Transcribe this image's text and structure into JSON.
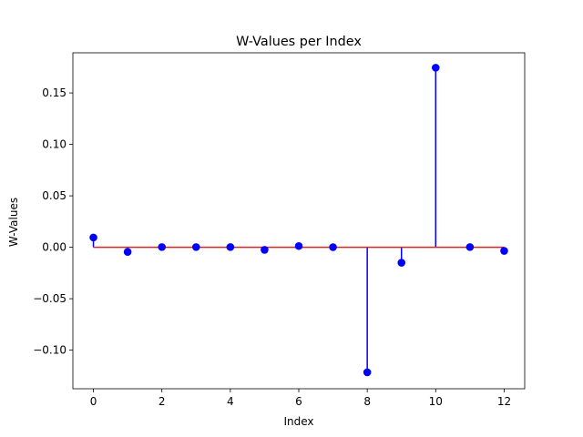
{
  "chart_data": {
    "type": "stem",
    "title": "W-Values per Index",
    "xlabel": "Index",
    "ylabel": "W-Values",
    "xlim": [
      -0.6,
      12.6
    ],
    "ylim": [
      -0.1375,
      0.189
    ],
    "xticks": [
      0,
      2,
      4,
      6,
      8,
      10,
      12
    ],
    "xtick_labels": [
      "0",
      "2",
      "4",
      "6",
      "8",
      "10",
      "12"
    ],
    "yticks": [
      -0.1,
      -0.05,
      0.0,
      0.05,
      0.1,
      0.15
    ],
    "ytick_labels": [
      "−0.10",
      "−0.05",
      "0.00",
      "0.05",
      "0.10",
      "0.15"
    ],
    "grid": false,
    "baseline": 0,
    "colors": {
      "marker": "#0000ff",
      "stem": "#0000ff",
      "baseline": "#d62728"
    },
    "x": [
      0,
      1,
      2,
      3,
      4,
      5,
      6,
      7,
      8,
      9,
      10,
      11,
      12
    ],
    "y": [
      0.0095,
      -0.0045,
      0.0002,
      0.0002,
      0.0002,
      -0.0025,
      0.0012,
      0.0001,
      -0.1215,
      -0.015,
      0.1745,
      0.0002,
      -0.0035
    ]
  }
}
